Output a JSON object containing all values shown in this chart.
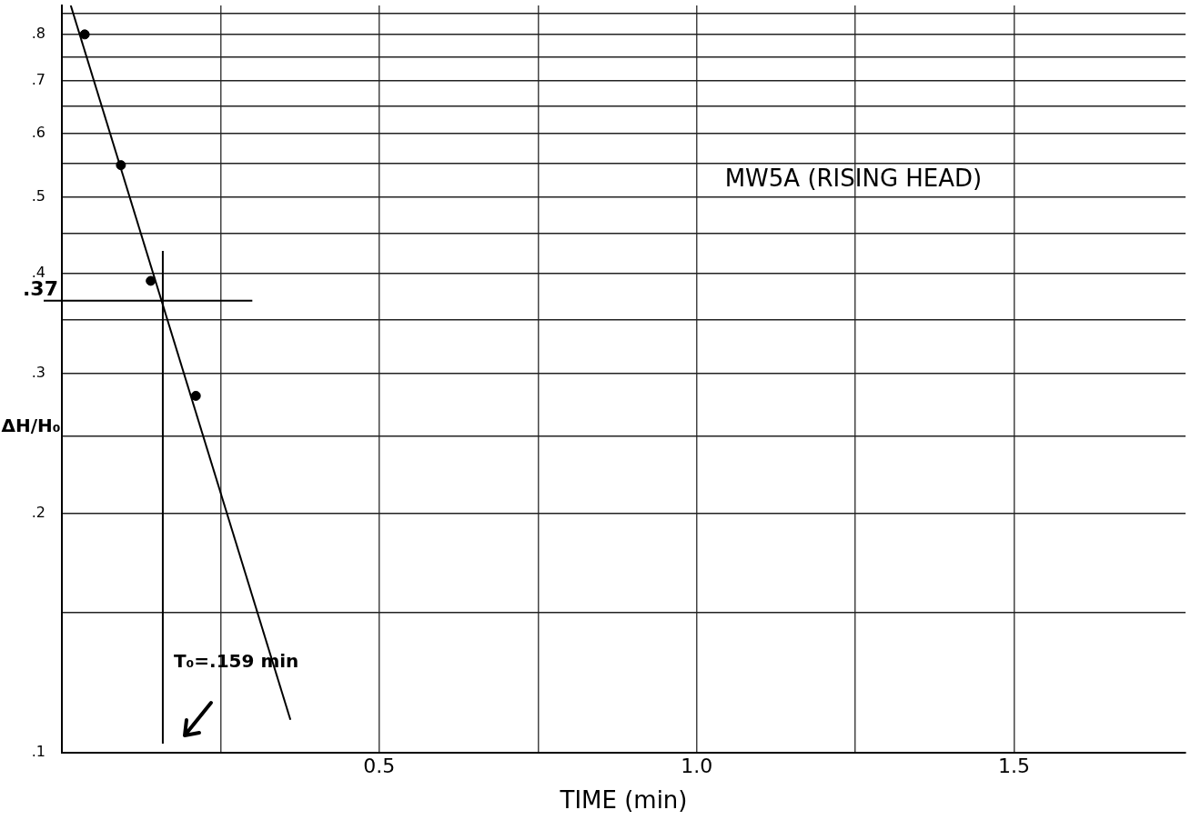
{
  "chart_data": {
    "type": "scatter",
    "xlabel": "TIME (min)",
    "ylabel": "ΔH/H₀",
    "series": [
      {
        "type": "scatter",
        "color": "#000000",
        "x": [
          0.036,
          0.093,
          0.14,
          0.211
        ],
        "values": [
          0.8,
          0.548,
          0.392,
          0.281
        ]
      },
      {
        "type": "line",
        "color": "#000000",
        "x": [
          0.014,
          0.36
        ],
        "values": [
          0.87,
          0.11
        ],
        "marker": "none"
      }
    ],
    "log": "y",
    "xlim": [
      0,
      1.77
    ],
    "ylim": [
      0.1,
      0.87
    ],
    "xticks": [
      {
        "value": 0,
        "label": null
      },
      {
        "value": 0.25,
        "label": null
      },
      {
        "value": 0.5,
        "label": "0.5"
      },
      {
        "value": 0.75,
        "label": null
      },
      {
        "value": 1,
        "label": "1.0"
      },
      {
        "value": 1.25,
        "label": null
      },
      {
        "value": 1.5,
        "label": "1.5"
      }
    ],
    "yticks": [
      {
        "value": 0.1,
        "label": ".1"
      },
      {
        "value": 0.15,
        "label": null
      },
      {
        "value": 0.2,
        "label": ".2"
      },
      {
        "value": 0.25,
        "label": null
      },
      {
        "value": 0.3,
        "label": ".3"
      },
      {
        "value": 0.35,
        "label": null
      },
      {
        "value": 0.4,
        "label": ".4"
      },
      {
        "value": 0.45,
        "label": null
      },
      {
        "value": 0.5,
        "label": ".5"
      },
      {
        "value": 0.55,
        "label": null
      },
      {
        "value": 0.6,
        "label": ".6"
      },
      {
        "value": 0.65,
        "label": null
      },
      {
        "value": 0.7,
        "label": ".7"
      },
      {
        "value": 0.75,
        "label": null
      },
      {
        "value": 0.8,
        "label": ".8"
      },
      {
        "value": 0.85,
        "label": null
      }
    ],
    "grid": true,
    "legend": false,
    "marker": "circle",
    "ref_lines": [
      {
        "axis": "x",
        "value": 0.159
      },
      {
        "axis": "y",
        "value": 0.37,
        "label": ".37"
      }
    ],
    "annotations": [
      "MW5A (RISING HEAD)",
      {
        "text": "T₀=.159 min",
        "x": 0.159,
        "y": 0.13
      }
    ]
  }
}
